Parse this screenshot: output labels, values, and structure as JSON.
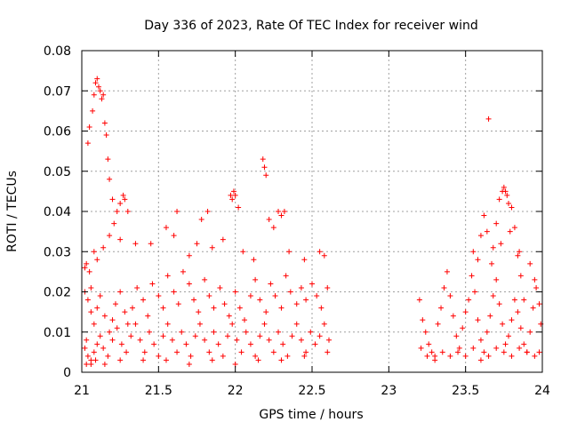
{
  "chart_data": {
    "type": "scatter",
    "title": "Day 336 of 2023, Rate Of TEC Index for receiver wind",
    "xlabel": "GPS time / hours",
    "ylabel": "ROTI / TECUs",
    "xlim": [
      21,
      24
    ],
    "ylim": [
      0,
      0.08
    ],
    "x_ticks": [
      "21",
      "21.5",
      "22",
      "22.5",
      "23",
      "23.5",
      "24"
    ],
    "y_ticks": [
      "0",
      "0.01",
      "0.02",
      "0.03",
      "0.04",
      "0.05",
      "0.06",
      "0.07",
      "0.08"
    ],
    "grid": true,
    "legend": "none",
    "marker": "+",
    "series_color": "#ff0000",
    "series": [
      {
        "points": [
          [
            21.03,
            0.008
          ],
          [
            21.04,
            0.057
          ],
          [
            21.05,
            0.061
          ],
          [
            21.06,
            0.021
          ],
          [
            21.07,
            0.065
          ],
          [
            21.08,
            0.069
          ],
          [
            21.09,
            0.072
          ],
          [
            21.1,
            0.073
          ],
          [
            21.11,
            0.071
          ],
          [
            21.12,
            0.07
          ],
          [
            21.13,
            0.068
          ],
          [
            21.14,
            0.069
          ],
          [
            21.15,
            0.062
          ],
          [
            21.16,
            0.059
          ],
          [
            21.17,
            0.053
          ],
          [
            21.18,
            0.048
          ],
          [
            21.2,
            0.043
          ],
          [
            21.21,
            0.037
          ],
          [
            21.23,
            0.04
          ],
          [
            21.25,
            0.042
          ],
          [
            21.27,
            0.044
          ],
          [
            21.28,
            0.043
          ],
          [
            21.3,
            0.04
          ],
          [
            21.62,
            0.04
          ],
          [
            21.78,
            0.038
          ],
          [
            21.82,
            0.04
          ],
          [
            21.97,
            0.044
          ],
          [
            21.98,
            0.043
          ],
          [
            21.99,
            0.045
          ],
          [
            22.0,
            0.044
          ],
          [
            22.02,
            0.041
          ],
          [
            22.18,
            0.053
          ],
          [
            22.19,
            0.051
          ],
          [
            22.2,
            0.049
          ],
          [
            22.22,
            0.038
          ],
          [
            22.28,
            0.04
          ],
          [
            22.3,
            0.039
          ],
          [
            22.32,
            0.04
          ],
          [
            21.02,
            0.026
          ],
          [
            21.03,
            0.027
          ],
          [
            21.05,
            0.025
          ],
          [
            21.08,
            0.03
          ],
          [
            21.1,
            0.028
          ],
          [
            21.14,
            0.031
          ],
          [
            21.18,
            0.034
          ],
          [
            21.25,
            0.033
          ],
          [
            21.35,
            0.032
          ],
          [
            21.45,
            0.032
          ],
          [
            21.55,
            0.036
          ],
          [
            21.6,
            0.034
          ],
          [
            21.7,
            0.029
          ],
          [
            21.75,
            0.032
          ],
          [
            21.85,
            0.031
          ],
          [
            21.92,
            0.033
          ],
          [
            22.05,
            0.03
          ],
          [
            22.12,
            0.028
          ],
          [
            22.25,
            0.036
          ],
          [
            22.35,
            0.03
          ],
          [
            22.45,
            0.028
          ],
          [
            22.55,
            0.03
          ],
          [
            22.58,
            0.029
          ],
          [
            21.02,
            0.02
          ],
          [
            21.04,
            0.018
          ],
          [
            21.06,
            0.015
          ],
          [
            21.08,
            0.012
          ],
          [
            21.1,
            0.016
          ],
          [
            21.12,
            0.019
          ],
          [
            21.15,
            0.014
          ],
          [
            21.18,
            0.01
          ],
          [
            21.2,
            0.013
          ],
          [
            21.22,
            0.017
          ],
          [
            21.25,
            0.02
          ],
          [
            21.28,
            0.015
          ],
          [
            21.3,
            0.012
          ],
          [
            21.33,
            0.016
          ],
          [
            21.36,
            0.021
          ],
          [
            21.4,
            0.018
          ],
          [
            21.43,
            0.014
          ],
          [
            21.46,
            0.022
          ],
          [
            21.5,
            0.019
          ],
          [
            21.53,
            0.016
          ],
          [
            21.56,
            0.024
          ],
          [
            21.6,
            0.02
          ],
          [
            21.63,
            0.017
          ],
          [
            21.66,
            0.025
          ],
          [
            21.7,
            0.022
          ],
          [
            21.73,
            0.018
          ],
          [
            21.76,
            0.015
          ],
          [
            21.8,
            0.023
          ],
          [
            21.83,
            0.019
          ],
          [
            21.86,
            0.016
          ],
          [
            21.9,
            0.021
          ],
          [
            21.93,
            0.017
          ],
          [
            21.96,
            0.014
          ],
          [
            22.0,
            0.02
          ],
          [
            22.03,
            0.016
          ],
          [
            22.06,
            0.013
          ],
          [
            22.1,
            0.019
          ],
          [
            22.13,
            0.023
          ],
          [
            22.16,
            0.018
          ],
          [
            22.2,
            0.015
          ],
          [
            22.23,
            0.022
          ],
          [
            22.26,
            0.019
          ],
          [
            22.3,
            0.016
          ],
          [
            22.33,
            0.024
          ],
          [
            22.36,
            0.02
          ],
          [
            22.4,
            0.017
          ],
          [
            22.43,
            0.021
          ],
          [
            22.46,
            0.018
          ],
          [
            22.5,
            0.022
          ],
          [
            22.53,
            0.019
          ],
          [
            22.56,
            0.016
          ],
          [
            22.6,
            0.021
          ],
          [
            21.02,
            0.006
          ],
          [
            21.04,
            0.004
          ],
          [
            21.06,
            0.003
          ],
          [
            21.08,
            0.005
          ],
          [
            21.1,
            0.007
          ],
          [
            21.12,
            0.009
          ],
          [
            21.14,
            0.006
          ],
          [
            21.17,
            0.004
          ],
          [
            21.2,
            0.008
          ],
          [
            21.23,
            0.011
          ],
          [
            21.26,
            0.007
          ],
          [
            21.29,
            0.005
          ],
          [
            21.32,
            0.009
          ],
          [
            21.35,
            0.012
          ],
          [
            21.38,
            0.008
          ],
          [
            21.41,
            0.005
          ],
          [
            21.44,
            0.01
          ],
          [
            21.47,
            0.007
          ],
          [
            21.5,
            0.004
          ],
          [
            21.53,
            0.009
          ],
          [
            21.56,
            0.012
          ],
          [
            21.59,
            0.008
          ],
          [
            21.62,
            0.005
          ],
          [
            21.65,
            0.01
          ],
          [
            21.68,
            0.007
          ],
          [
            21.71,
            0.004
          ],
          [
            21.74,
            0.009
          ],
          [
            21.77,
            0.012
          ],
          [
            21.8,
            0.008
          ],
          [
            21.83,
            0.005
          ],
          [
            21.86,
            0.01
          ],
          [
            21.89,
            0.007
          ],
          [
            21.92,
            0.004
          ],
          [
            21.95,
            0.009
          ],
          [
            21.98,
            0.012
          ],
          [
            22.01,
            0.008
          ],
          [
            22.04,
            0.005
          ],
          [
            22.07,
            0.01
          ],
          [
            22.1,
            0.007
          ],
          [
            22.13,
            0.004
          ],
          [
            22.16,
            0.009
          ],
          [
            22.19,
            0.012
          ],
          [
            22.22,
            0.008
          ],
          [
            22.25,
            0.005
          ],
          [
            22.28,
            0.01
          ],
          [
            22.31,
            0.007
          ],
          [
            22.34,
            0.004
          ],
          [
            22.37,
            0.009
          ],
          [
            22.4,
            0.012
          ],
          [
            22.43,
            0.008
          ],
          [
            22.46,
            0.005
          ],
          [
            22.49,
            0.01
          ],
          [
            22.52,
            0.007
          ],
          [
            22.55,
            0.009
          ],
          [
            22.58,
            0.012
          ],
          [
            22.61,
            0.008
          ],
          [
            21.03,
            0.002
          ],
          [
            21.06,
            0.002
          ],
          [
            21.09,
            0.003
          ],
          [
            21.15,
            0.002
          ],
          [
            21.25,
            0.003
          ],
          [
            21.4,
            0.003
          ],
          [
            21.55,
            0.003
          ],
          [
            21.7,
            0.002
          ],
          [
            21.85,
            0.003
          ],
          [
            22.0,
            0.002
          ],
          [
            22.15,
            0.003
          ],
          [
            22.3,
            0.003
          ],
          [
            22.45,
            0.004
          ],
          [
            22.6,
            0.005
          ],
          [
            23.2,
            0.018
          ],
          [
            23.22,
            0.013
          ],
          [
            23.24,
            0.01
          ],
          [
            23.26,
            0.007
          ],
          [
            23.28,
            0.005
          ],
          [
            23.3,
            0.004
          ],
          [
            23.32,
            0.012
          ],
          [
            23.34,
            0.016
          ],
          [
            23.36,
            0.021
          ],
          [
            23.38,
            0.025
          ],
          [
            23.4,
            0.019
          ],
          [
            23.42,
            0.014
          ],
          [
            23.44,
            0.009
          ],
          [
            23.46,
            0.006
          ],
          [
            23.48,
            0.011
          ],
          [
            23.5,
            0.015
          ],
          [
            23.52,
            0.018
          ],
          [
            23.54,
            0.024
          ],
          [
            23.56,
            0.02
          ],
          [
            23.58,
            0.013
          ],
          [
            23.6,
            0.008
          ],
          [
            23.62,
            0.005
          ],
          [
            23.64,
            0.01
          ],
          [
            23.66,
            0.014
          ],
          [
            23.68,
            0.019
          ],
          [
            23.7,
            0.023
          ],
          [
            23.72,
            0.017
          ],
          [
            23.74,
            0.012
          ],
          [
            23.76,
            0.007
          ],
          [
            23.78,
            0.009
          ],
          [
            23.8,
            0.013
          ],
          [
            23.82,
            0.018
          ],
          [
            23.84,
            0.015
          ],
          [
            23.86,
            0.011
          ],
          [
            23.88,
            0.007
          ],
          [
            23.9,
            0.005
          ],
          [
            23.92,
            0.01
          ],
          [
            23.94,
            0.016
          ],
          [
            23.96,
            0.021
          ],
          [
            23.98,
            0.017
          ],
          [
            23.99,
            0.012
          ],
          [
            23.21,
            0.006
          ],
          [
            23.25,
            0.004
          ],
          [
            23.3,
            0.003
          ],
          [
            23.35,
            0.005
          ],
          [
            23.4,
            0.004
          ],
          [
            23.45,
            0.005
          ],
          [
            23.5,
            0.004
          ],
          [
            23.55,
            0.006
          ],
          [
            23.6,
            0.003
          ],
          [
            23.65,
            0.004
          ],
          [
            23.7,
            0.006
          ],
          [
            23.75,
            0.005
          ],
          [
            23.8,
            0.004
          ],
          [
            23.85,
            0.006
          ],
          [
            23.9,
            0.005
          ],
          [
            23.95,
            0.004
          ],
          [
            23.98,
            0.005
          ],
          [
            23.62,
            0.039
          ],
          [
            23.64,
            0.035
          ],
          [
            23.65,
            0.063
          ],
          [
            23.7,
            0.037
          ],
          [
            23.72,
            0.043
          ],
          [
            23.74,
            0.045
          ],
          [
            23.75,
            0.046
          ],
          [
            23.76,
            0.045
          ],
          [
            23.77,
            0.044
          ],
          [
            23.78,
            0.042
          ],
          [
            23.8,
            0.041
          ],
          [
            23.82,
            0.036
          ],
          [
            23.84,
            0.029
          ],
          [
            23.86,
            0.024
          ],
          [
            23.88,
            0.018
          ],
          [
            23.6,
            0.034
          ],
          [
            23.68,
            0.031
          ],
          [
            23.73,
            0.032
          ],
          [
            23.79,
            0.035
          ],
          [
            23.85,
            0.03
          ],
          [
            23.55,
            0.03
          ],
          [
            23.58,
            0.028
          ],
          [
            23.67,
            0.027
          ],
          [
            23.92,
            0.027
          ],
          [
            23.95,
            0.023
          ]
        ]
      }
    ]
  }
}
